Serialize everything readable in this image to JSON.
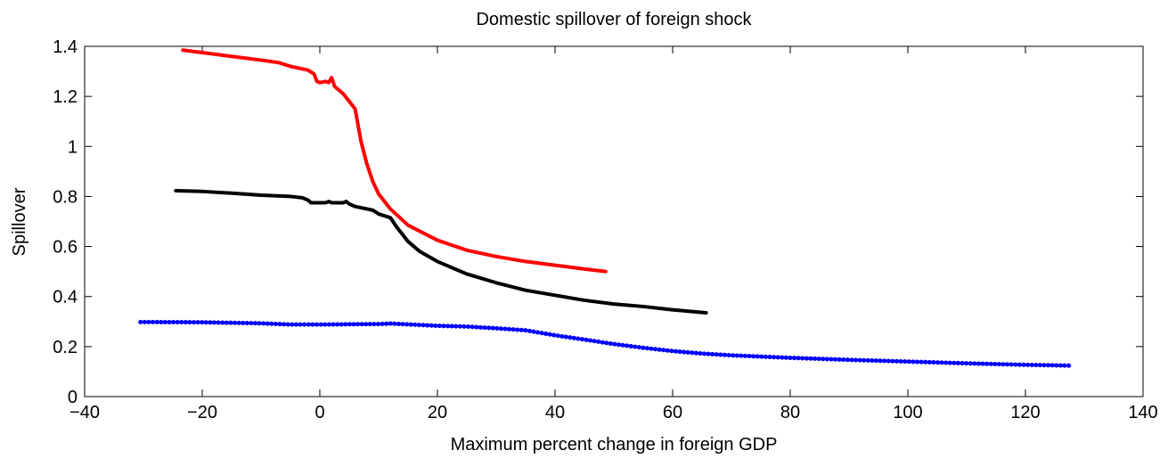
{
  "chart_data": {
    "type": "line",
    "title": "Domestic spillover of foreign shock",
    "x_label": "Maximum percent change in foreign GDP",
    "y_label": "Spillover",
    "xlim": [
      -40,
      140
    ],
    "ylim": [
      0,
      1.4
    ],
    "xticks": [
      {
        "value": -40,
        "label": "−40"
      },
      {
        "value": -20,
        "label": "−20"
      },
      0,
      20,
      40,
      60,
      80,
      100,
      120,
      140
    ],
    "yticks": [
      0,
      0.2,
      0.4,
      0.6,
      0.8,
      1,
      1.2,
      1.4
    ],
    "grid": false,
    "series": [
      {
        "color": "#ff0000",
        "width": 4,
        "x": [
          -23.3,
          -20,
          -15,
          -10,
          -7,
          -5,
          -2,
          -1,
          -0.5,
          0,
          1,
          1.5,
          2,
          2.5,
          3.5,
          4,
          5,
          5.5,
          6,
          7,
          8,
          9,
          10,
          12,
          15,
          20,
          25,
          30,
          35,
          40,
          45,
          48.6
        ],
        "values": [
          1.385,
          1.375,
          1.36,
          1.345,
          1.335,
          1.32,
          1.305,
          1.29,
          1.26,
          1.255,
          1.26,
          1.255,
          1.275,
          1.24,
          1.22,
          1.21,
          1.18,
          1.165,
          1.15,
          1.02,
          0.93,
          0.86,
          0.81,
          0.75,
          0.685,
          0.625,
          0.585,
          0.56,
          0.54,
          0.525,
          0.51,
          0.5
        ]
      },
      {
        "color": "#000000",
        "width": 4,
        "x": [
          -24.5,
          -20,
          -15,
          -10,
          -5,
          -3,
          -2,
          -1.5,
          0,
          1,
          1.5,
          2,
          3,
          4,
          4.5,
          5,
          6,
          8,
          9,
          10,
          12,
          13,
          15,
          17,
          20,
          25,
          30,
          35,
          40,
          45,
          50,
          55,
          60,
          65.7
        ],
        "values": [
          0.823,
          0.82,
          0.813,
          0.805,
          0.8,
          0.795,
          0.785,
          0.775,
          0.775,
          0.775,
          0.78,
          0.775,
          0.775,
          0.775,
          0.78,
          0.77,
          0.76,
          0.75,
          0.745,
          0.73,
          0.715,
          0.68,
          0.62,
          0.58,
          0.54,
          0.49,
          0.455,
          0.425,
          0.405,
          0.385,
          0.37,
          0.36,
          0.347,
          0.335
        ]
      },
      {
        "color": "#0000ff",
        "width": 3,
        "dotted": true,
        "x": [
          -30.5,
          -20,
          -10,
          -5,
          0,
          10,
          12,
          20,
          25,
          30,
          35,
          40,
          45,
          50,
          55,
          60,
          65,
          70,
          80,
          90,
          100,
          110,
          120,
          127.4
        ],
        "values": [
          0.298,
          0.297,
          0.293,
          0.288,
          0.288,
          0.29,
          0.292,
          0.283,
          0.28,
          0.273,
          0.265,
          0.245,
          0.228,
          0.21,
          0.195,
          0.182,
          0.172,
          0.165,
          0.155,
          0.147,
          0.14,
          0.133,
          0.127,
          0.124
        ]
      }
    ]
  }
}
